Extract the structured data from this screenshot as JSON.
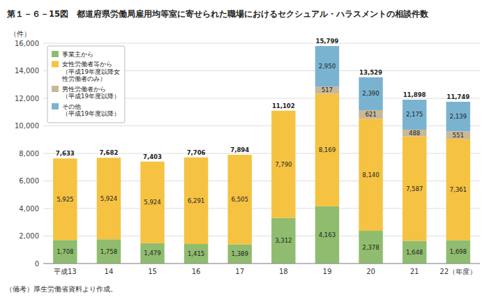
{
  "chart_data": {
    "type": "bar",
    "stacked": true,
    "title": "第１－６－15図　都道府県労働局雇用均等室に寄せられた職場におけるセクシュアル・ハラスメントの相談件数",
    "y_label": "（件）",
    "annotations": [
      "（備考）厚生労働省資料より作成。"
    ],
    "categories": [
      "平成13",
      "14",
      "15",
      "16",
      "17",
      "18",
      "19",
      "20",
      "21",
      "22（年度）"
    ],
    "series": [
      {
        "name": "事業主から",
        "color": "#8fbc6e",
        "values": [
          1708,
          1758,
          1479,
          1415,
          1389,
          3312,
          4163,
          2378,
          1648,
          1698
        ]
      },
      {
        "name": "女性労働者等から\n（平成19年度以降女\n性労働者のみ）",
        "color": "#f5c242",
        "values": [
          5925,
          5924,
          5924,
          6291,
          6505,
          7790,
          8169,
          8140,
          7587,
          7361
        ]
      },
      {
        "name": "男性労働者から\n（平成19年度以降）",
        "color": "#c8b89a",
        "values": [
          0,
          0,
          0,
          0,
          0,
          0,
          517,
          621,
          488,
          551
        ]
      },
      {
        "name": "その他\n（平成19年度以降）",
        "color": "#7ab3d0",
        "values": [
          0,
          0,
          0,
          0,
          0,
          0,
          2950,
          2390,
          2175,
          2139
        ]
      }
    ],
    "totals": [
      7633,
      7682,
      7403,
      7706,
      7894,
      11102,
      15799,
      13529,
      11898,
      11749
    ],
    "ylim": [
      0,
      16000
    ],
    "yticks": [
      0,
      {
        "value": 2000,
        "label": "2,000"
      },
      {
        "value": 4000,
        "label": "4,000"
      },
      {
        "value": 6000,
        "label": "6,000"
      },
      {
        "value": 8000,
        "label": "8,000"
      },
      {
        "value": 10000,
        "label": "10,000"
      },
      {
        "value": 12000,
        "label": "12,000"
      },
      {
        "value": 14000,
        "label": "14,000"
      },
      {
        "value": 16000,
        "label": "16,000"
      }
    ],
    "grid": true,
    "legend": "upper left",
    "data_labels": true
  }
}
